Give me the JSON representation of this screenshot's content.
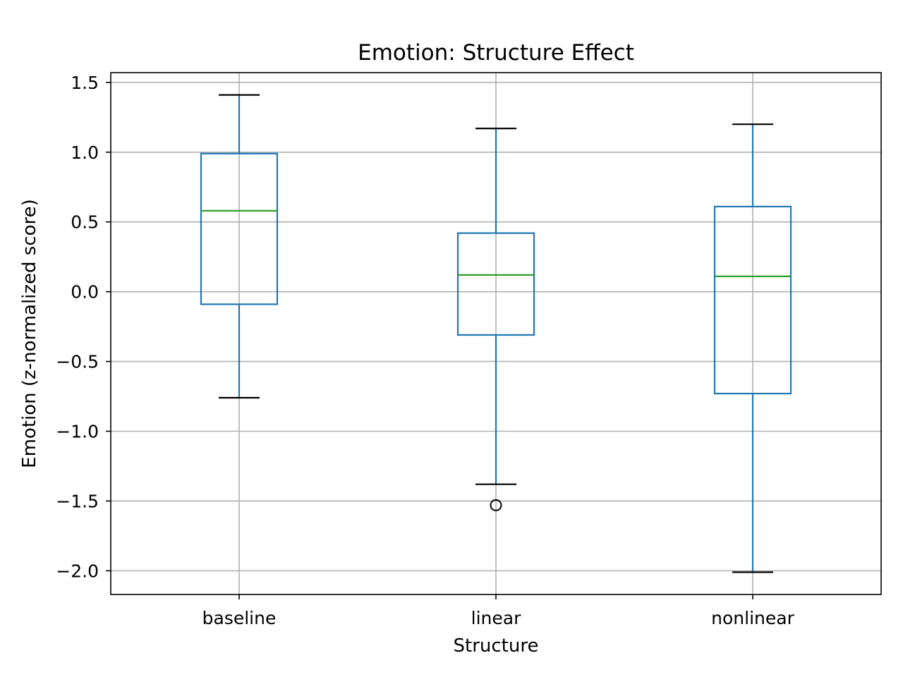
{
  "chart_data": {
    "type": "box",
    "title": "Emotion: Structure Effect",
    "xlabel": "Structure",
    "ylabel": "Emotion (z-normalized score)",
    "ylim": [
      -2.17,
      1.57
    ],
    "yticks": [
      1.5,
      1.0,
      0.5,
      0.0,
      -0.5,
      -1.0,
      -1.5,
      -2.0
    ],
    "ytick_labels": [
      "1.5",
      "1.0",
      "0.5",
      "0.0",
      "−0.5",
      "−1.0",
      "−1.5",
      "−2.0"
    ],
    "grid": true,
    "categories": [
      "baseline",
      "linear",
      "nonlinear"
    ],
    "boxes": [
      {
        "category": "baseline",
        "whisker_low": -0.76,
        "q1": -0.09,
        "median": 0.58,
        "q3": 0.99,
        "whisker_high": 1.41,
        "outliers": []
      },
      {
        "category": "linear",
        "whisker_low": -1.38,
        "q1": -0.31,
        "median": 0.12,
        "q3": 0.42,
        "whisker_high": 1.17,
        "outliers": [
          -1.53
        ]
      },
      {
        "category": "nonlinear",
        "whisker_low": -2.01,
        "q1": -0.73,
        "median": 0.11,
        "q3": 0.61,
        "whisker_high": 1.2,
        "outliers": []
      }
    ],
    "colors": {
      "box": "#1f77b4",
      "median": "#2ca02c",
      "whisker_cap": "#000000",
      "grid": "#b0b0b0",
      "outlier": "#000000"
    }
  }
}
